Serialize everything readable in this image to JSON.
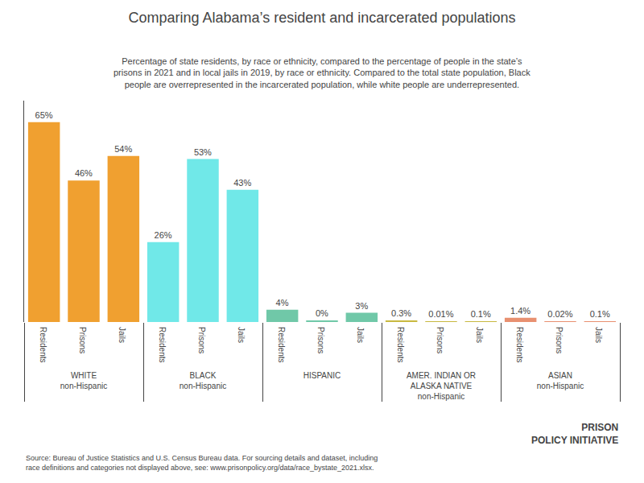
{
  "chart_data": {
    "type": "bar",
    "title": "Comparing Alabama’s resident and incarcerated populations",
    "subtitle": "Percentage of state residents, by race or ethnicity, compared to the percentage of people in the state’s\nprisons in 2021 and in local jails in 2019, by race or ethnicity. Compared to the total state population, Black\npeople are overrepresented in the incarcerated population, while white people are underrepresented.",
    "annotations": [
      "Source: Bureau of Justice Statistics and U.S. Census Bureau data. For sourcing details and dataset, including\nrace definitions and categories not displayed above, see: www.prisonpolicy.org/data/race_bystate_2021.xlsx.",
      "PRISON\nPOLICY INITIATIVE"
    ],
    "categories": [
      "WHITE\nnon-Hispanic",
      "BLACK\nnon-Hispanic",
      "HISPANIC",
      "AMER. INDIAN OR\nALASKA NATIVE\nnon-Hispanic",
      "ASIAN\nnon-Hispanic"
    ],
    "series": [
      {
        "name": "Residents",
        "colors": [
          "#f0a030",
          "#70e8e8",
          "#70c8a8",
          "#c8b840",
          "#e89070"
        ],
        "values": [
          65,
          26,
          4,
          0.3,
          1.4
        ],
        "value_labels": [
          "65%",
          "26%",
          "4%",
          "0.3%",
          "1.4%"
        ]
      },
      {
        "name": "Prisons",
        "colors": [
          "#f0a030",
          "#70e8e8",
          "#70c8a8",
          "#c8b840",
          "#e89070"
        ],
        "values": [
          46,
          53,
          0.3,
          0.01,
          0.02
        ],
        "value_labels": [
          "46%",
          "53%",
          "0%",
          "0.01%",
          "0.02%"
        ]
      },
      {
        "name": "Jails",
        "colors": [
          "#f0a030",
          "#70e8e8",
          "#70c8a8",
          "#c8b840",
          "#e89070"
        ],
        "values": [
          54,
          43,
          3,
          0.1,
          0.1
        ],
        "value_labels": [
          "54%",
          "43%",
          "3%",
          "0.1%",
          "0.1%"
        ]
      }
    ],
    "ylim": [
      0,
      72
    ],
    "grid": false,
    "tick_labels": "x",
    "data_labels": true
  }
}
